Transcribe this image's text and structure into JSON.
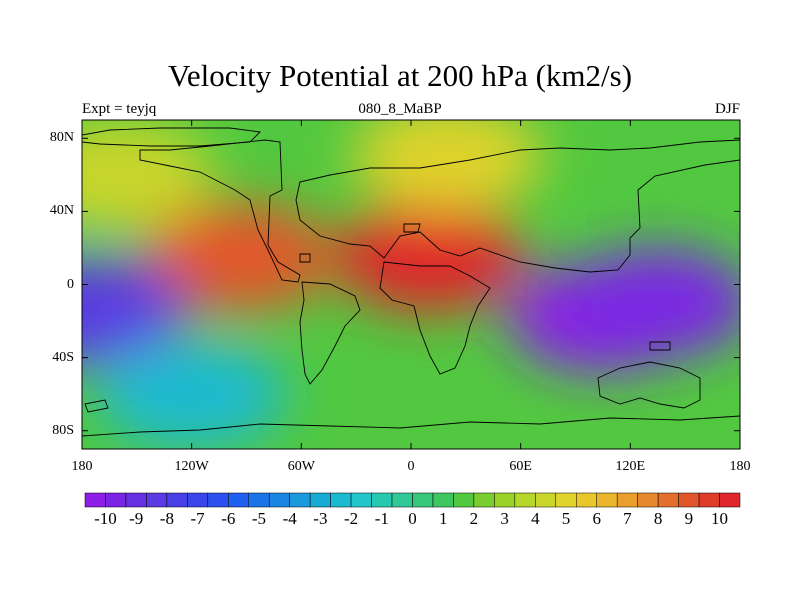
{
  "figure": {
    "title": "Velocity Potential at 200 hPa (km2/s)",
    "left_subtitle": "Expt = teyjq",
    "center_subtitle": "080_8_MaBP",
    "right_subtitle": "DJF"
  },
  "axes": {
    "lat_ticks": [
      "80N",
      "40N",
      "0",
      "40S",
      "80S"
    ],
    "lat_values": [
      80,
      40,
      0,
      -40,
      -80
    ],
    "lon_ticks": [
      "180",
      "120W",
      "60W",
      "0",
      "60E",
      "120E",
      "180"
    ],
    "lon_values": [
      -180,
      -120,
      -60,
      0,
      60,
      120,
      180
    ],
    "lat_range": [
      -90,
      90
    ],
    "lon_range": [
      -180,
      180
    ]
  },
  "colorbar": {
    "labels": [
      "-10",
      "-9",
      "-8",
      "-7",
      "-6",
      "-5",
      "-4",
      "-3",
      "-2",
      "-1",
      "0",
      "1",
      "2",
      "3",
      "4",
      "5",
      "6",
      "7",
      "8",
      "9",
      "10"
    ],
    "levels": [
      -10,
      -9,
      -8,
      -7,
      -6,
      -5,
      -4,
      -3,
      -2,
      -1,
      0,
      1,
      2,
      3,
      4,
      5,
      6,
      7,
      8,
      9,
      10
    ],
    "colors": [
      "#8d1ee8",
      "#7a25e4",
      "#6730e0",
      "#5a3ae2",
      "#4840e6",
      "#3a46ea",
      "#2d4ff0",
      "#1f61ee",
      "#1a73e8",
      "#1a86e2",
      "#1a99dc",
      "#1aabd5",
      "#1cbad0",
      "#21c7c8",
      "#27c8b0",
      "#30c996",
      "#37c77b",
      "#3ec661",
      "#52c840",
      "#7acd2e",
      "#9ad22a",
      "#b5d62a",
      "#cad62a",
      "#dfd32c",
      "#eac82c",
      "#eab52c",
      "#e89f2c",
      "#e6882c",
      "#e46e2c",
      "#e2562c",
      "#e03c2c",
      "#e0252c"
    ]
  },
  "chart_data": {
    "type": "heatmap",
    "title": "Velocity Potential at 200 hPa (km2/s)",
    "subtitle": "080_8_MaBP",
    "xlabel": "",
    "ylabel": "",
    "units": "km2/s",
    "xlim": [
      -180,
      180
    ],
    "ylim": [
      -90,
      90
    ],
    "clim": [
      -10,
      10
    ],
    "features": [
      {
        "lon": 10,
        "lat": 15,
        "value": 9.5
      },
      {
        "lon": -95,
        "lat": 15,
        "value": 8.5
      },
      {
        "lon": 105,
        "lat": -18,
        "value": -9.5
      },
      {
        "lon": 135,
        "lat": -10,
        "value": -9.0
      },
      {
        "lon": -175,
        "lat": -15,
        "value": -8.0
      },
      {
        "lon": -160,
        "lat": 60,
        "value": 4.0
      },
      {
        "lon": 20,
        "lat": 70,
        "value": 4.5
      },
      {
        "lon": -120,
        "lat": -60,
        "value": -2.0
      }
    ]
  }
}
